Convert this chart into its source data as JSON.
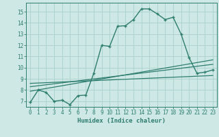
{
  "xlabel": "Humidex (Indice chaleur)",
  "bg_color": "#cde8e5",
  "grid_color": "#afd4d0",
  "line_color": "#2e7d6e",
  "xlim": [
    -0.5,
    23.5
  ],
  "ylim": [
    6.5,
    15.8
  ],
  "yticks": [
    7,
    8,
    9,
    10,
    11,
    12,
    13,
    14,
    15
  ],
  "xticks": [
    0,
    1,
    2,
    3,
    4,
    5,
    6,
    7,
    8,
    9,
    10,
    11,
    12,
    13,
    14,
    15,
    16,
    17,
    18,
    19,
    20,
    21,
    22,
    23
  ],
  "curve1_x": [
    0,
    1,
    2,
    3,
    4,
    5,
    6,
    7,
    8,
    9,
    10,
    11,
    12,
    13,
    14,
    15,
    16,
    17,
    18,
    19,
    20,
    21,
    22,
    23
  ],
  "curve1_y": [
    6.9,
    8.0,
    7.8,
    7.0,
    7.1,
    6.7,
    7.5,
    7.55,
    9.5,
    12.0,
    11.9,
    13.7,
    13.75,
    14.3,
    15.25,
    15.25,
    14.8,
    14.3,
    14.5,
    13.0,
    10.9,
    9.5,
    9.6,
    9.8
  ],
  "curve2_x": [
    0,
    23
  ],
  "curve2_y": [
    7.9,
    10.7
  ],
  "curve3_x": [
    0,
    23
  ],
  "curve3_y": [
    8.3,
    10.3
  ],
  "curve4_x": [
    0,
    23
  ],
  "curve4_y": [
    8.6,
    9.3
  ]
}
